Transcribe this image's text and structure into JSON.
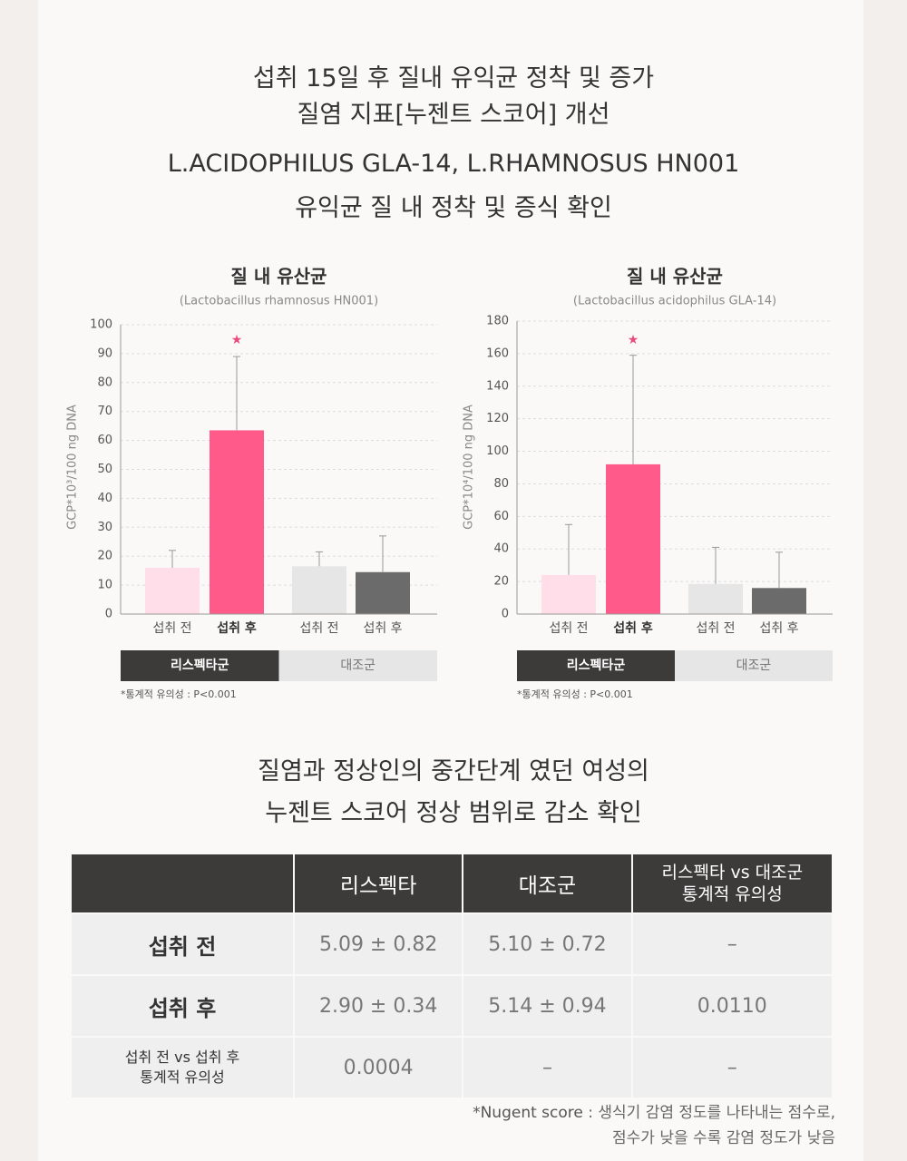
{
  "header": {
    "line1": "섭취 15일 후 질내 유익균 정착 및 증가",
    "line2": "질염 지표[누젠트 스코어] 개선",
    "line3": "L.ACIDOPHILUS GLA-14, L.RHAMNOSUS HN001",
    "line4": "유익균 질 내 정착 및 증식 확인"
  },
  "chart_data": [
    {
      "type": "bar",
      "title": "질 내 유산균",
      "subtitle": "(Lactobacillus rhamnosus HN001)",
      "y_label": "GCP*10³/100 ng DNA",
      "categories": [
        "섭취 전",
        "섭취 후",
        "섭취 전",
        "섭취 후"
      ],
      "values": [
        16,
        63.5,
        16.5,
        14.5
      ],
      "errors": [
        6,
        25.5,
        5,
        12.5
      ],
      "colors": [
        "#ffdde9",
        "#ff5a8a",
        "#e6e6e6",
        "#6b6b6b"
      ],
      "ylim": [
        0,
        100
      ],
      "yticks": [
        0,
        10,
        20,
        30,
        40,
        50,
        60,
        70,
        80,
        90,
        100
      ],
      "grid": true,
      "marker": "★",
      "groups": [
        "리스펙타군",
        "대조군"
      ],
      "note": "*통계적 유의성 : P<0.001"
    },
    {
      "type": "bar",
      "title": "질 내 유산균",
      "subtitle": "(Lactobacillus acidophilus GLA-14)",
      "y_label": "GCP*10⁴/100 ng DNA",
      "categories": [
        "섭취 전",
        "섭취 후",
        "섭취 전",
        "섭취 후"
      ],
      "values": [
        24,
        92,
        18.5,
        16
      ],
      "errors": [
        31,
        67,
        22.5,
        22
      ],
      "colors": [
        "#ffdde9",
        "#ff5a8a",
        "#e6e6e6",
        "#6b6b6b"
      ],
      "ylim": [
        0,
        180
      ],
      "yticks": [
        0,
        20,
        40,
        60,
        80,
        100,
        120,
        140,
        160,
        180
      ],
      "grid": true,
      "marker": "★",
      "groups": [
        "리스펙타군",
        "대조군"
      ],
      "note": "*통계적 유의성 : P<0.001"
    }
  ],
  "section2": {
    "line1": "질염과 정상인의 중간단계 였던 여성의",
    "line2": "누젠트 스코어  정상 범위로 감소 확인"
  },
  "table": {
    "header": [
      [
        "리스펙타"
      ],
      [
        "대조군"
      ],
      [
        "리스펙타 vs 대조군",
        "통계적 유의성"
      ]
    ],
    "rows": [
      {
        "label": [
          "섭취 전"
        ],
        "cells": [
          "5.09 ± 0.82",
          "5.10 ± 0.72",
          "–"
        ]
      },
      {
        "label": [
          "섭취 후"
        ],
        "cells": [
          "2.90 ± 0.34",
          "5.14 ± 0.94",
          "0.0110"
        ]
      },
      {
        "label": [
          "섭취 전 vs 섭취 후",
          "통계적 유의성"
        ],
        "cells": [
          "0.0004",
          "–",
          "–"
        ]
      }
    ]
  },
  "footnote": {
    "term": "*Nugent score",
    "line1": " : 생식기 감염 정도를 나타내는 점수로,",
    "line2": "점수가 낮을 수록 감염 정도가 낮음"
  }
}
